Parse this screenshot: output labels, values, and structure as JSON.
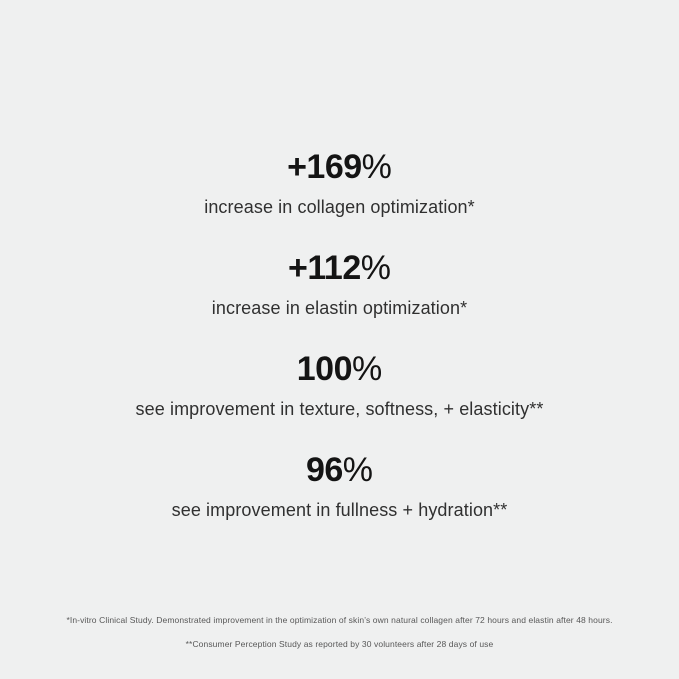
{
  "page": {
    "background_color": "#eff0f0",
    "number_color": "#141414",
    "label_color": "#303030",
    "footnote_color": "#585858"
  },
  "stats": [
    {
      "value": "+169",
      "unit": "%",
      "label": "increase in collagen optimization*"
    },
    {
      "value": "+112",
      "unit": "%",
      "label": "increase in elastin optimization*"
    },
    {
      "value": "100",
      "unit": "%",
      "label": "see improvement in texture, softness, + elasticity**"
    },
    {
      "value": "96",
      "unit": "%",
      "label": "see improvement in fullness + hydration**"
    }
  ],
  "footnotes": [
    "*In-vitro Clinical Study. Demonstrated improvement in the optimization of skin’s own natural collagen after 72 hours and elastin after 48 hours.",
    "**Consumer Perception Study as reported by 30 volunteers after 28 days of use"
  ]
}
